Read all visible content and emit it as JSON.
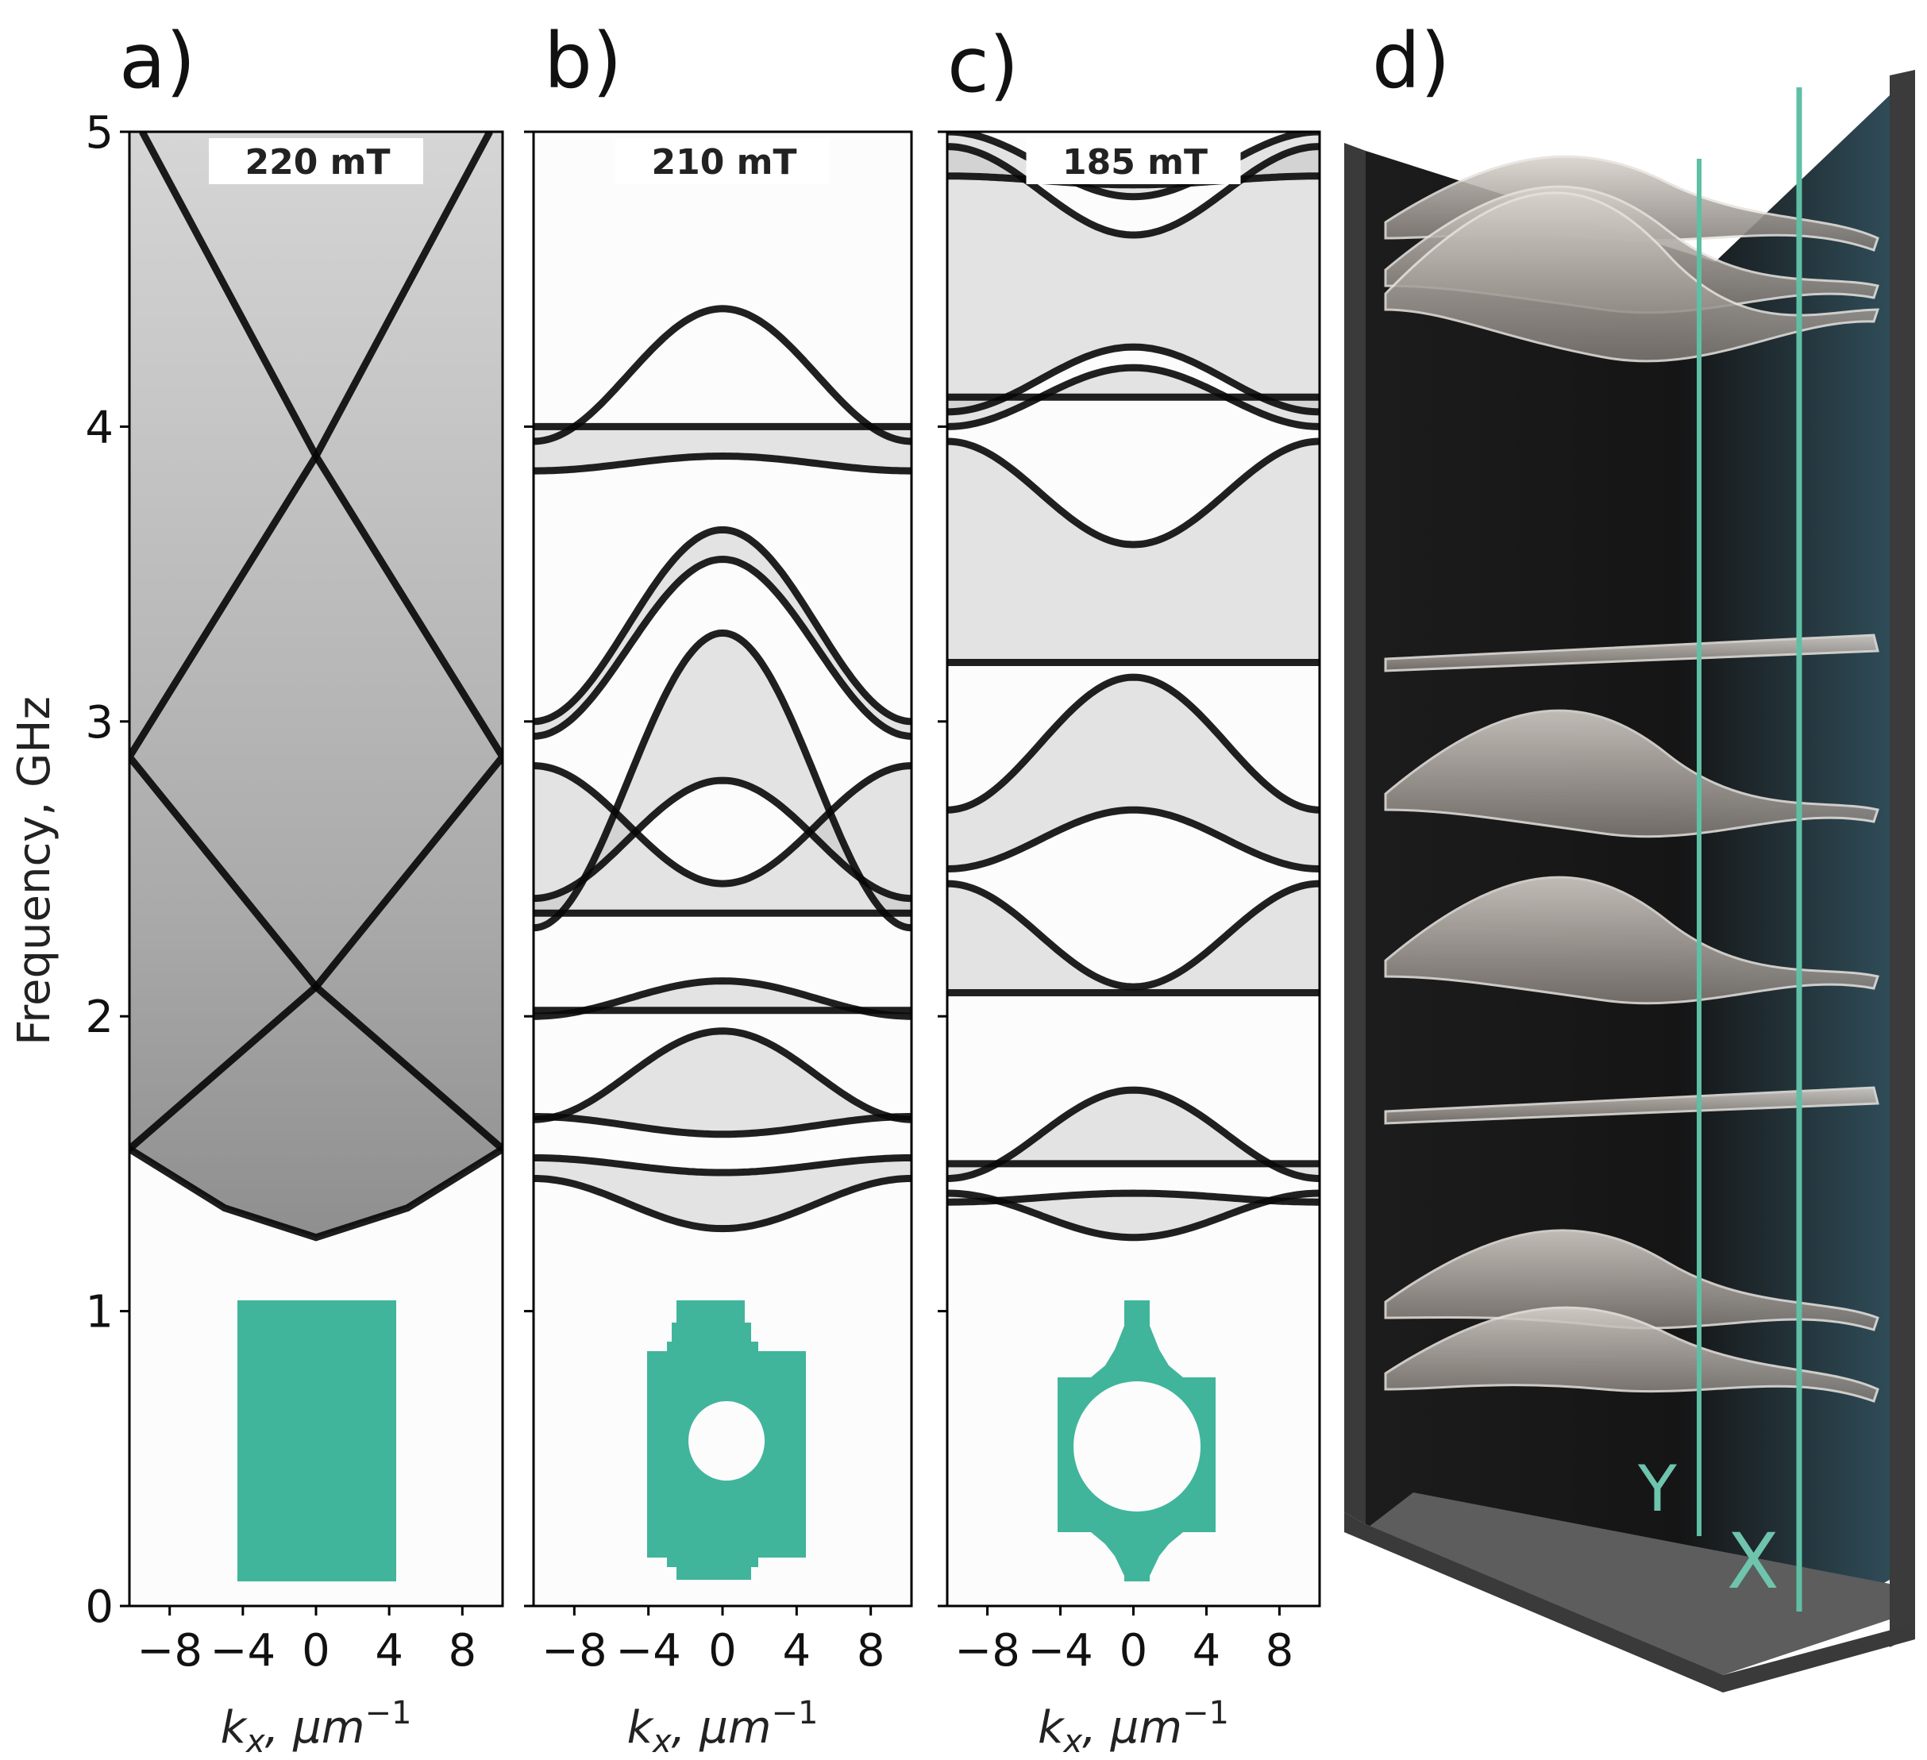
{
  "chart_data": [
    {
      "type": "heatmap",
      "panel_label": "a)",
      "field_label": "220 mT",
      "ylabel": "Frequency, GHz",
      "xlabel": "k_x, μm^-1",
      "xlabel_main": "k",
      "xlabel_sub": "x",
      "xlabel_rest": ", μm",
      "xlabel_sup": "−1",
      "xlim": [
        -10.2,
        10.2
      ],
      "ylim": [
        0,
        5
      ],
      "xticks": [
        -8,
        -4,
        0,
        4,
        8
      ],
      "xtick_labels": [
        "−8",
        "−4",
        "0",
        "4",
        "8"
      ],
      "yticks": [
        0,
        1,
        2,
        3,
        4,
        5
      ],
      "ytick_labels": [
        "0",
        "1",
        "2",
        "3",
        "4",
        "5"
      ],
      "colormap": "greys",
      "band_lines": [
        [
          [
            -10.2,
            1.55
          ],
          [
            0,
            2.1
          ],
          [
            10.2,
            2.88
          ],
          [
            0,
            3.9
          ],
          [
            -9.5,
            5.0
          ]
        ],
        [
          [
            10.2,
            1.55
          ],
          [
            0,
            2.1
          ],
          [
            -10.2,
            2.88
          ],
          [
            0,
            3.9
          ],
          [
            9.5,
            5.0
          ]
        ],
        [
          [
            -10.2,
            1.55
          ],
          [
            -5,
            1.35
          ],
          [
            0,
            1.25
          ],
          [
            5,
            1.35
          ],
          [
            10.2,
            1.55
          ]
        ]
      ],
      "inset_shape": "rectangle"
    },
    {
      "type": "heatmap",
      "panel_label": "b)",
      "field_label": "210 mT",
      "xlabel_main": "k",
      "xlabel_sub": "x",
      "xlabel_rest": ", μm",
      "xlabel_sup": "−1",
      "xlim": [
        -10.2,
        10.2
      ],
      "ylim": [
        0,
        5
      ],
      "xticks": [
        -8,
        -4,
        0,
        4,
        8
      ],
      "xtick_labels": [
        "−8",
        "−4",
        "0",
        "4",
        "8"
      ],
      "yticks": [
        0,
        1,
        2,
        3,
        4,
        5
      ],
      "colormap": "greys",
      "bands": [
        {
          "f_center": 1.28,
          "f_edge": 1.45
        },
        {
          "f_center": 1.47,
          "f_edge": 1.52
        },
        {
          "f_center": 1.6,
          "f_edge": 1.66
        },
        {
          "f_center": 1.95,
          "f_edge": 1.65
        },
        {
          "f_center": 2.02,
          "f_edge": 2.02
        },
        {
          "f_center": 2.12,
          "f_edge": 2.0
        },
        {
          "f_center": 2.35,
          "f_edge": 2.35
        },
        {
          "f_center": 2.45,
          "f_edge": 2.85
        },
        {
          "f_center": 2.8,
          "f_edge": 2.4
        },
        {
          "f_center": 3.3,
          "f_edge": 2.3
        },
        {
          "f_center": 3.55,
          "f_edge": 2.95
        },
        {
          "f_center": 3.65,
          "f_edge": 3.0
        },
        {
          "f_center": 3.9,
          "f_edge": 3.85
        },
        {
          "f_center": 4.0,
          "f_edge": 4.0
        },
        {
          "f_center": 4.4,
          "f_edge": 3.95
        }
      ],
      "inset_shape": "notched rectangle with circular hole"
    },
    {
      "type": "heatmap",
      "panel_label": "c)",
      "field_label": "185 mT",
      "xlabel_main": "k",
      "xlabel_sub": "x",
      "xlabel_rest": ", μm",
      "xlabel_sup": "−1",
      "xlim": [
        -10.2,
        10.2
      ],
      "ylim": [
        0,
        5
      ],
      "xticks": [
        -8,
        -4,
        0,
        4,
        8
      ],
      "xtick_labels": [
        "−8",
        "−4",
        "0",
        "4",
        "8"
      ],
      "yticks": [
        0,
        1,
        2,
        3,
        4,
        5
      ],
      "colormap": "greys",
      "bands": [
        {
          "f_center": 1.25,
          "f_edge": 1.4
        },
        {
          "f_center": 1.4,
          "f_edge": 1.37
        },
        {
          "f_center": 1.5,
          "f_edge": 1.5
        },
        {
          "f_center": 1.75,
          "f_edge": 1.45
        },
        {
          "f_center": 2.08,
          "f_edge": 2.08
        },
        {
          "f_center": 2.1,
          "f_edge": 2.45
        },
        {
          "f_center": 2.7,
          "f_edge": 2.5
        },
        {
          "f_center": 3.15,
          "f_edge": 2.7
        },
        {
          "f_center": 3.2,
          "f_edge": 3.2
        },
        {
          "f_center": 3.6,
          "f_edge": 3.95
        },
        {
          "f_center": 4.1,
          "f_edge": 4.1
        },
        {
          "f_center": 4.2,
          "f_edge": 4.0
        },
        {
          "f_center": 4.27,
          "f_edge": 4.05
        },
        {
          "f_center": 4.65,
          "f_edge": 4.95
        },
        {
          "f_center": 4.78,
          "f_edge": 5.0
        },
        {
          "f_center": 4.82,
          "f_edge": 4.85
        }
      ],
      "inset_shape": "tapered cross with large circular hole"
    }
  ],
  "panel_d": {
    "panel_label": "d)",
    "axis_y_label": "Y",
    "axis_x_label": "X",
    "accent_color": "#5fbfa5",
    "box_color": "#2b2b2b"
  },
  "colors": {
    "inset_teal": "#40b59b"
  }
}
